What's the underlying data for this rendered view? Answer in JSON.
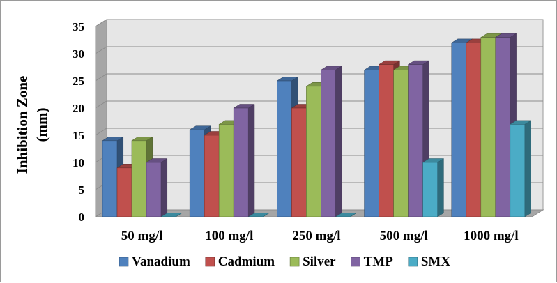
{
  "chart_data": {
    "type": "bar",
    "categories": [
      "50 mg/l",
      "100 mg/l",
      "250 mg/l",
      "500 mg/l",
      "1000 mg/l"
    ],
    "series": [
      {
        "name": "Vanadium",
        "values": [
          14,
          16,
          25,
          27,
          32
        ],
        "color": "#4f81bd"
      },
      {
        "name": "Cadmium",
        "values": [
          9,
          15,
          20,
          28,
          32
        ],
        "color": "#c0504d"
      },
      {
        "name": "Silver",
        "values": [
          14,
          17,
          24,
          27,
          33
        ],
        "color": "#9bbb59"
      },
      {
        "name": "TMP",
        "values": [
          10,
          20,
          27,
          28,
          33
        ],
        "color": "#8064a2"
      },
      {
        "name": "SMX",
        "values": [
          0,
          0,
          0,
          10,
          17
        ],
        "color": "#4bacc6"
      }
    ],
    "ylabel_line1": "Inhibition Zone",
    "ylabel_line2": "(mm)",
    "ylim": [
      0,
      35
    ],
    "yticks": [
      "0",
      "5",
      "10",
      "15",
      "20",
      "25",
      "30",
      "35"
    ],
    "grid": true,
    "legend_position": "bottom"
  }
}
